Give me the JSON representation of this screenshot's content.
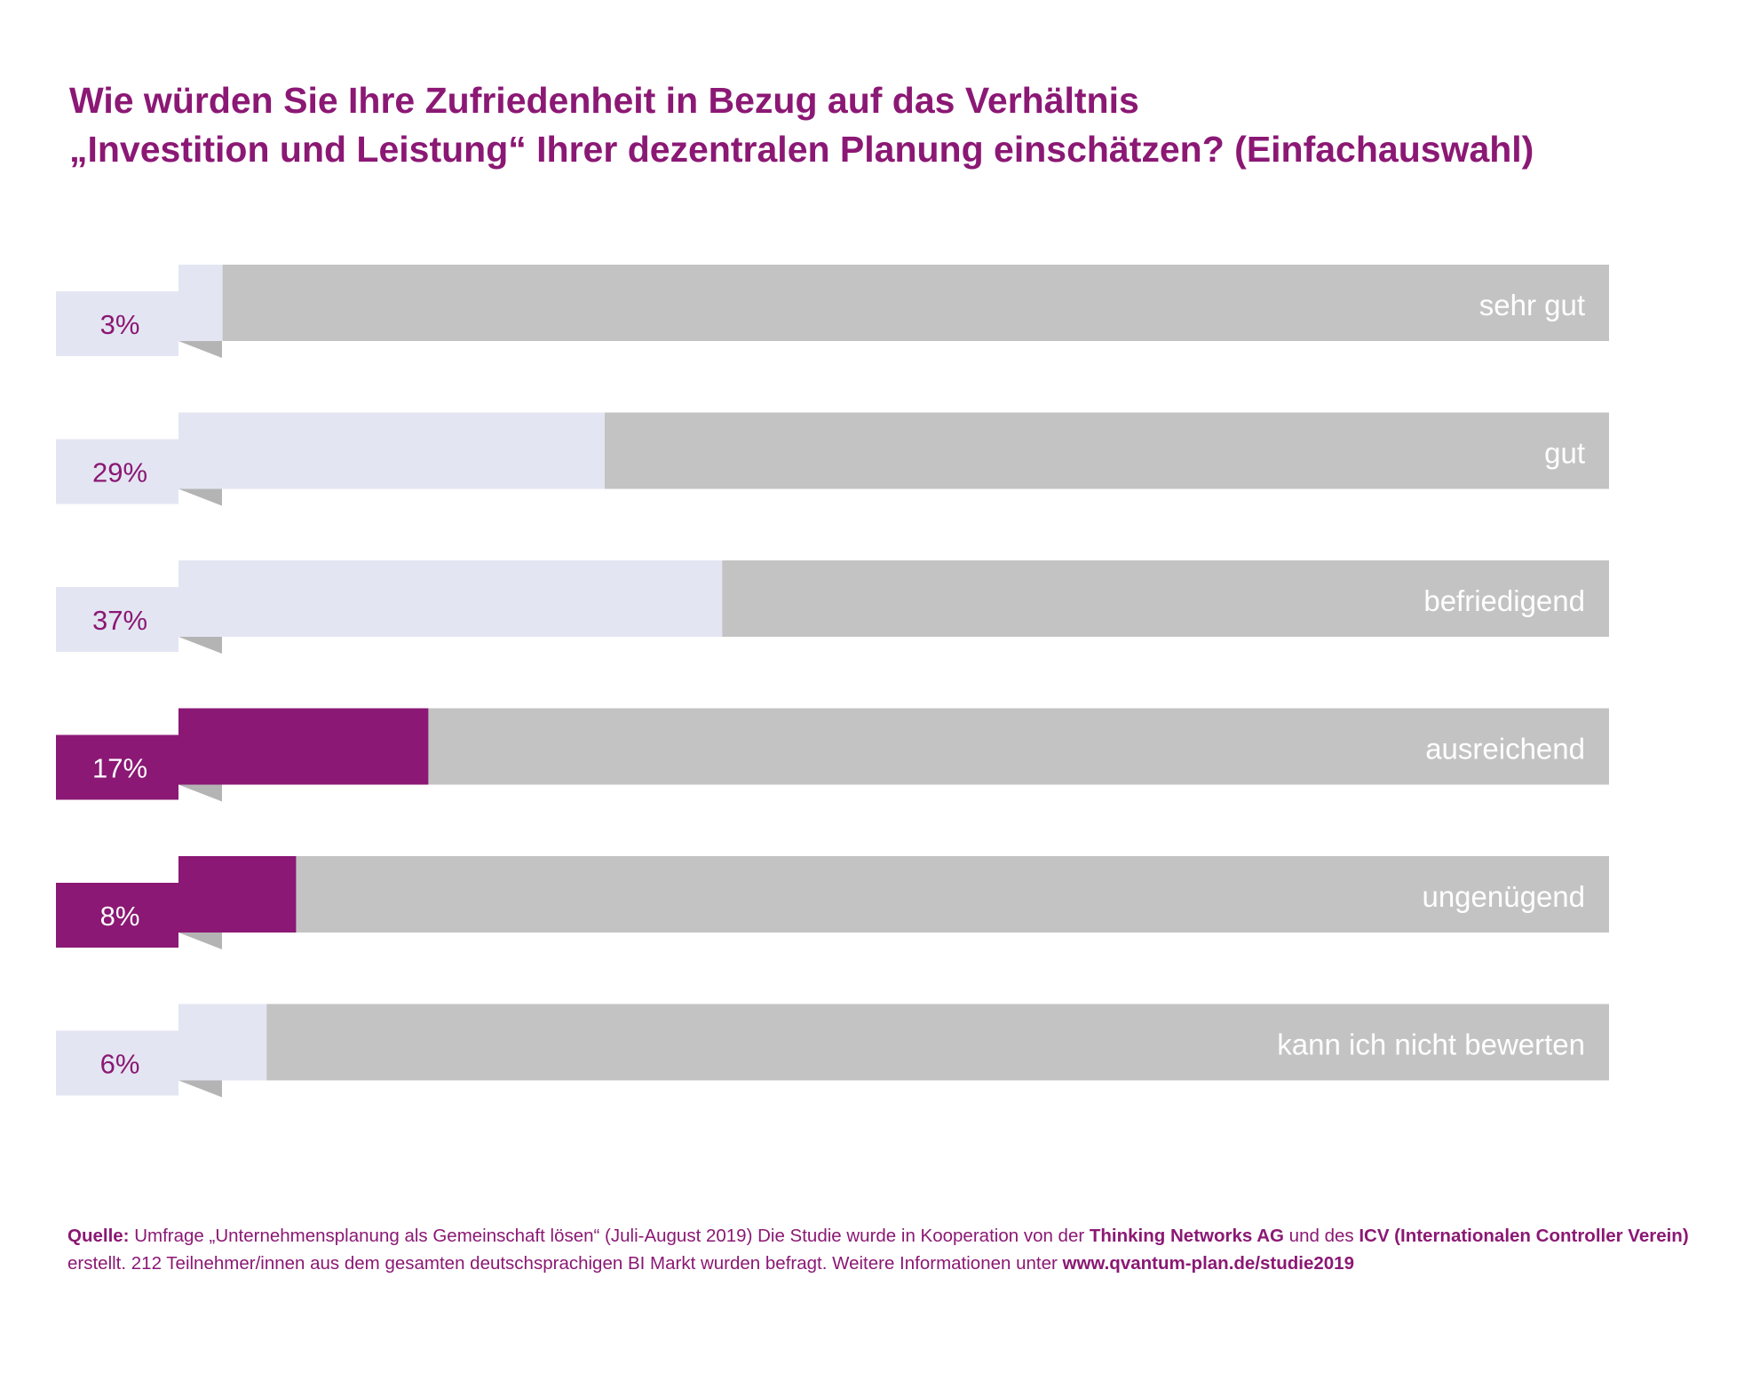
{
  "title": {
    "line1": "Wie würden Sie Ihre Zufriedenheit in Bezug auf das Verhältnis",
    "line2": "„Investition und Leistung“ Ihrer dezentralen Planung  einschätzen? (Einfachauswahl)"
  },
  "colors": {
    "title": "#8b1874",
    "track": "#c3c3c3",
    "light_fill": "#e3e6f2",
    "accent_fill": "#8b1874",
    "fold_shadow": "#b4b4b4",
    "light_pct_text": "#8b1874",
    "accent_pct_text": "#ffffff"
  },
  "chart_data": {
    "type": "bar",
    "orientation": "horizontal",
    "categories": [
      "sehr gut",
      "gut",
      "befriedigend",
      "ausreichend",
      "ungenügend",
      "kann ich nicht bewerten"
    ],
    "values": [
      3,
      29,
      37,
      17,
      8,
      6
    ],
    "value_labels": [
      "3%",
      "29%",
      "37%",
      "17%",
      "8%",
      "6%"
    ],
    "highlighted": [
      false,
      false,
      false,
      true,
      true,
      false
    ],
    "xlim": [
      0,
      100
    ],
    "unit": "%",
    "grid": false,
    "legend": false
  },
  "source": {
    "label": "Quelle:",
    "text1": " Umfrage „Unternehmensplanung als Gemeinschaft lösen“ (Juli-August 2019)  Die Studie wurde in Kooperation von der ",
    "org1": "Thinking Networks AG",
    "text2": " und des ",
    "org2": "ICV  (Internationalen Controller Verein)",
    "text3": "erstellt. 212 Teilnehmer/innen aus dem gesamten deutschsprachigen BI Markt wurden befragt. Weitere Informationen unter ",
    "url": "www.qvantum-plan.de/studie2019"
  }
}
